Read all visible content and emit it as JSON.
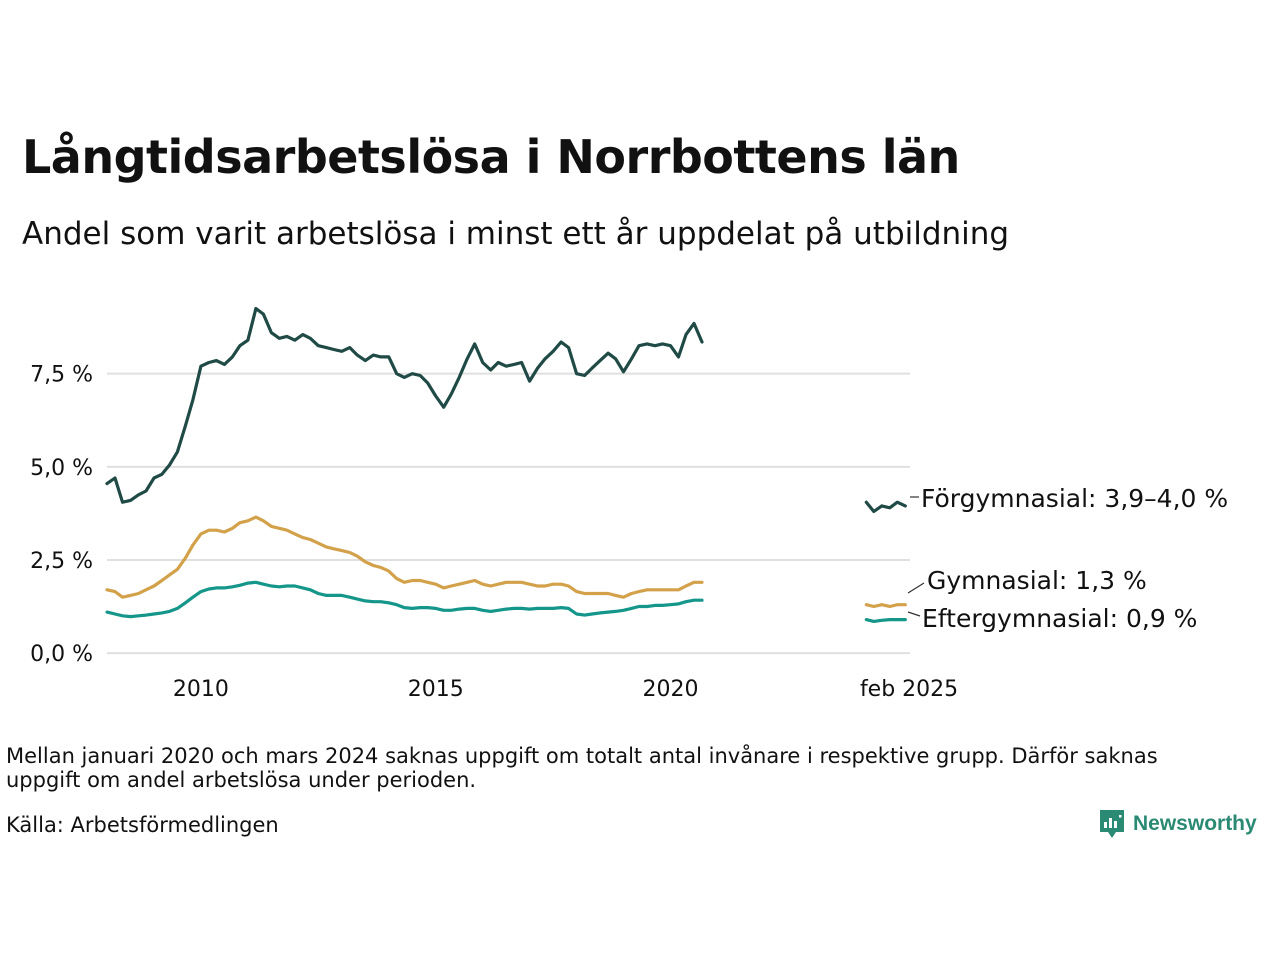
{
  "title": "Långtidsarbetslösa i Norrbottens län",
  "subtitle": "Andel som varit arbetslösa i minst ett år uppdelat på utbildning",
  "note": "Mellan januari 2020 och mars 2024 saknas uppgift om totalt antal invånare i respektive grupp. Därför saknas uppgift om andel arbetslösa under perioden.",
  "source": "Källa: Arbetsförmedlingen",
  "brand": "Newsworthy",
  "chart_data": {
    "type": "line",
    "title": "Långtidsarbetslösa i Norrbottens län",
    "subtitle": "Andel som varit arbetslösa i minst ett år uppdelat på utbildning",
    "xlabel": "",
    "ylabel": "",
    "x_ticks": [
      {
        "x": 2010.0,
        "label": "2010"
      },
      {
        "x": 2015.0,
        "label": "2015"
      },
      {
        "x": 2020.0,
        "label": "2020"
      },
      {
        "x": 2025.08,
        "label": "feb 2025"
      }
    ],
    "y_ticks": [
      {
        "y": 0,
        "label": "0,0 %"
      },
      {
        "y": 2.5,
        "label": "2,5 %"
      },
      {
        "y": 5,
        "label": "5,0 %"
      },
      {
        "y": 7.5,
        "label": "7,5 %"
      }
    ],
    "xlim": [
      2008.0,
      2025.1
    ],
    "ylim": [
      -0.4,
      9.8
    ],
    "grid": true,
    "legend": "direct labels at right",
    "series": [
      {
        "name": "Förgymnasial",
        "label": "Förgymnasial: 3,9–4,0 %",
        "color": "#1f4a45",
        "segments": [
          [
            [
              2008.0,
              4.55
            ],
            [
              2008.17,
              4.7
            ],
            [
              2008.33,
              4.05
            ],
            [
              2008.5,
              4.1
            ],
            [
              2008.67,
              4.25
            ],
            [
              2008.83,
              4.35
            ],
            [
              2009.0,
              4.7
            ],
            [
              2009.17,
              4.8
            ],
            [
              2009.33,
              5.05
            ],
            [
              2009.5,
              5.4
            ],
            [
              2009.67,
              6.1
            ],
            [
              2009.83,
              6.8
            ],
            [
              2010.0,
              7.7
            ],
            [
              2010.17,
              7.8
            ],
            [
              2010.33,
              7.85
            ],
            [
              2010.5,
              7.75
            ],
            [
              2010.67,
              7.95
            ],
            [
              2010.83,
              8.25
            ],
            [
              2011.0,
              8.4
            ],
            [
              2011.17,
              9.25
            ],
            [
              2011.33,
              9.1
            ],
            [
              2011.5,
              8.6
            ],
            [
              2011.67,
              8.45
            ],
            [
              2011.83,
              8.5
            ],
            [
              2012.0,
              8.4
            ],
            [
              2012.17,
              8.55
            ],
            [
              2012.33,
              8.45
            ],
            [
              2012.5,
              8.25
            ],
            [
              2012.67,
              8.2
            ],
            [
              2012.83,
              8.15
            ],
            [
              2013.0,
              8.1
            ],
            [
              2013.17,
              8.2
            ],
            [
              2013.33,
              8.0
            ],
            [
              2013.5,
              7.85
            ],
            [
              2013.67,
              8.0
            ],
            [
              2013.83,
              7.95
            ],
            [
              2014.0,
              7.95
            ],
            [
              2014.17,
              7.5
            ],
            [
              2014.33,
              7.4
            ],
            [
              2014.5,
              7.5
            ],
            [
              2014.67,
              7.45
            ],
            [
              2014.83,
              7.25
            ],
            [
              2015.0,
              6.9
            ],
            [
              2015.17,
              6.6
            ],
            [
              2015.33,
              6.95
            ],
            [
              2015.5,
              7.4
            ],
            [
              2015.67,
              7.9
            ],
            [
              2015.83,
              8.3
            ],
            [
              2016.0,
              7.8
            ],
            [
              2016.17,
              7.6
            ],
            [
              2016.33,
              7.8
            ],
            [
              2016.5,
              7.7
            ],
            [
              2016.67,
              7.75
            ],
            [
              2016.83,
              7.8
            ],
            [
              2017.0,
              7.3
            ],
            [
              2017.17,
              7.65
            ],
            [
              2017.33,
              7.9
            ],
            [
              2017.5,
              8.1
            ],
            [
              2017.67,
              8.35
            ],
            [
              2017.83,
              8.2
            ],
            [
              2018.0,
              7.5
            ],
            [
              2018.17,
              7.45
            ],
            [
              2018.33,
              7.65
            ],
            [
              2018.5,
              7.85
            ],
            [
              2018.67,
              8.05
            ],
            [
              2018.83,
              7.9
            ],
            [
              2019.0,
              7.55
            ],
            [
              2019.17,
              7.9
            ],
            [
              2019.33,
              8.25
            ],
            [
              2019.5,
              8.3
            ],
            [
              2019.67,
              8.25
            ],
            [
              2019.83,
              8.3
            ],
            [
              2020.0,
              8.25
            ],
            [
              2020.17,
              7.95
            ],
            [
              2020.33,
              8.55
            ],
            [
              2020.5,
              8.85
            ],
            [
              2020.67,
              8.35
            ]
          ],
          [
            [
              2024.17,
              4.05
            ],
            [
              2024.33,
              3.8
            ],
            [
              2024.5,
              3.95
            ],
            [
              2024.67,
              3.9
            ],
            [
              2024.83,
              4.05
            ],
            [
              2025.0,
              3.95
            ]
          ]
        ]
      },
      {
        "name": "Gymnasial",
        "label": "Gymnasial: 1,3 %",
        "color": "#d2a14a",
        "segments": [
          [
            [
              2008.0,
              1.7
            ],
            [
              2008.17,
              1.65
            ],
            [
              2008.33,
              1.5
            ],
            [
              2008.5,
              1.55
            ],
            [
              2008.67,
              1.6
            ],
            [
              2008.83,
              1.7
            ],
            [
              2009.0,
              1.8
            ],
            [
              2009.17,
              1.95
            ],
            [
              2009.33,
              2.1
            ],
            [
              2009.5,
              2.25
            ],
            [
              2009.67,
              2.55
            ],
            [
              2009.83,
              2.9
            ],
            [
              2010.0,
              3.2
            ],
            [
              2010.17,
              3.3
            ],
            [
              2010.33,
              3.3
            ],
            [
              2010.5,
              3.25
            ],
            [
              2010.67,
              3.35
            ],
            [
              2010.83,
              3.5
            ],
            [
              2011.0,
              3.55
            ],
            [
              2011.17,
              3.65
            ],
            [
              2011.33,
              3.55
            ],
            [
              2011.5,
              3.4
            ],
            [
              2011.67,
              3.35
            ],
            [
              2011.83,
              3.3
            ],
            [
              2012.0,
              3.2
            ],
            [
              2012.17,
              3.1
            ],
            [
              2012.33,
              3.05
            ],
            [
              2012.5,
              2.95
            ],
            [
              2012.67,
              2.85
            ],
            [
              2012.83,
              2.8
            ],
            [
              2013.0,
              2.75
            ],
            [
              2013.17,
              2.7
            ],
            [
              2013.33,
              2.6
            ],
            [
              2013.5,
              2.45
            ],
            [
              2013.67,
              2.35
            ],
            [
              2013.83,
              2.3
            ],
            [
              2014.0,
              2.2
            ],
            [
              2014.17,
              2.0
            ],
            [
              2014.33,
              1.9
            ],
            [
              2014.5,
              1.95
            ],
            [
              2014.67,
              1.95
            ],
            [
              2014.83,
              1.9
            ],
            [
              2015.0,
              1.85
            ],
            [
              2015.17,
              1.75
            ],
            [
              2015.33,
              1.8
            ],
            [
              2015.5,
              1.85
            ],
            [
              2015.67,
              1.9
            ],
            [
              2015.83,
              1.95
            ],
            [
              2016.0,
              1.85
            ],
            [
              2016.17,
              1.8
            ],
            [
              2016.33,
              1.85
            ],
            [
              2016.5,
              1.9
            ],
            [
              2016.67,
              1.9
            ],
            [
              2016.83,
              1.9
            ],
            [
              2017.0,
              1.85
            ],
            [
              2017.17,
              1.8
            ],
            [
              2017.33,
              1.8
            ],
            [
              2017.5,
              1.85
            ],
            [
              2017.67,
              1.85
            ],
            [
              2017.83,
              1.8
            ],
            [
              2018.0,
              1.65
            ],
            [
              2018.17,
              1.6
            ],
            [
              2018.33,
              1.6
            ],
            [
              2018.5,
              1.6
            ],
            [
              2018.67,
              1.6
            ],
            [
              2018.83,
              1.55
            ],
            [
              2019.0,
              1.5
            ],
            [
              2019.17,
              1.6
            ],
            [
              2019.33,
              1.65
            ],
            [
              2019.5,
              1.7
            ],
            [
              2019.67,
              1.7
            ],
            [
              2019.83,
              1.7
            ],
            [
              2020.0,
              1.7
            ],
            [
              2020.17,
              1.7
            ],
            [
              2020.33,
              1.8
            ],
            [
              2020.5,
              1.9
            ],
            [
              2020.67,
              1.9
            ]
          ],
          [
            [
              2024.17,
              1.3
            ],
            [
              2024.33,
              1.25
            ],
            [
              2024.5,
              1.3
            ],
            [
              2024.67,
              1.25
            ],
            [
              2024.83,
              1.3
            ],
            [
              2025.0,
              1.3
            ]
          ]
        ]
      },
      {
        "name": "Eftergymnasial",
        "label": "Eftergymnasial: 0,9 %",
        "color": "#14968a",
        "segments": [
          [
            [
              2008.0,
              1.1
            ],
            [
              2008.17,
              1.05
            ],
            [
              2008.33,
              1.0
            ],
            [
              2008.5,
              0.98
            ],
            [
              2008.67,
              1.0
            ],
            [
              2008.83,
              1.02
            ],
            [
              2009.0,
              1.05
            ],
            [
              2009.17,
              1.08
            ],
            [
              2009.33,
              1.12
            ],
            [
              2009.5,
              1.2
            ],
            [
              2009.67,
              1.35
            ],
            [
              2009.83,
              1.5
            ],
            [
              2010.0,
              1.65
            ],
            [
              2010.17,
              1.72
            ],
            [
              2010.33,
              1.75
            ],
            [
              2010.5,
              1.75
            ],
            [
              2010.67,
              1.78
            ],
            [
              2010.83,
              1.82
            ],
            [
              2011.0,
              1.88
            ],
            [
              2011.17,
              1.9
            ],
            [
              2011.33,
              1.85
            ],
            [
              2011.5,
              1.8
            ],
            [
              2011.67,
              1.78
            ],
            [
              2011.83,
              1.8
            ],
            [
              2012.0,
              1.8
            ],
            [
              2012.17,
              1.75
            ],
            [
              2012.33,
              1.7
            ],
            [
              2012.5,
              1.6
            ],
            [
              2012.67,
              1.55
            ],
            [
              2012.83,
              1.55
            ],
            [
              2013.0,
              1.55
            ],
            [
              2013.17,
              1.5
            ],
            [
              2013.33,
              1.45
            ],
            [
              2013.5,
              1.4
            ],
            [
              2013.67,
              1.38
            ],
            [
              2013.83,
              1.38
            ],
            [
              2014.0,
              1.35
            ],
            [
              2014.17,
              1.3
            ],
            [
              2014.33,
              1.22
            ],
            [
              2014.5,
              1.2
            ],
            [
              2014.67,
              1.22
            ],
            [
              2014.83,
              1.22
            ],
            [
              2015.0,
              1.2
            ],
            [
              2015.17,
              1.15
            ],
            [
              2015.33,
              1.15
            ],
            [
              2015.5,
              1.18
            ],
            [
              2015.67,
              1.2
            ],
            [
              2015.83,
              1.2
            ],
            [
              2016.0,
              1.15
            ],
            [
              2016.17,
              1.12
            ],
            [
              2016.33,
              1.15
            ],
            [
              2016.5,
              1.18
            ],
            [
              2016.67,
              1.2
            ],
            [
              2016.83,
              1.2
            ],
            [
              2017.0,
              1.18
            ],
            [
              2017.17,
              1.2
            ],
            [
              2017.33,
              1.2
            ],
            [
              2017.5,
              1.2
            ],
            [
              2017.67,
              1.22
            ],
            [
              2017.83,
              1.2
            ],
            [
              2018.0,
              1.05
            ],
            [
              2018.17,
              1.02
            ],
            [
              2018.33,
              1.05
            ],
            [
              2018.5,
              1.08
            ],
            [
              2018.67,
              1.1
            ],
            [
              2018.83,
              1.12
            ],
            [
              2019.0,
              1.15
            ],
            [
              2019.17,
              1.2
            ],
            [
              2019.33,
              1.25
            ],
            [
              2019.5,
              1.25
            ],
            [
              2019.67,
              1.28
            ],
            [
              2019.83,
              1.28
            ],
            [
              2020.0,
              1.3
            ],
            [
              2020.17,
              1.32
            ],
            [
              2020.33,
              1.38
            ],
            [
              2020.5,
              1.42
            ],
            [
              2020.67,
              1.42
            ]
          ],
          [
            [
              2024.17,
              0.9
            ],
            [
              2024.33,
              0.85
            ],
            [
              2024.5,
              0.88
            ],
            [
              2024.67,
              0.9
            ],
            [
              2024.83,
              0.9
            ],
            [
              2025.0,
              0.9
            ]
          ]
        ]
      }
    ]
  }
}
